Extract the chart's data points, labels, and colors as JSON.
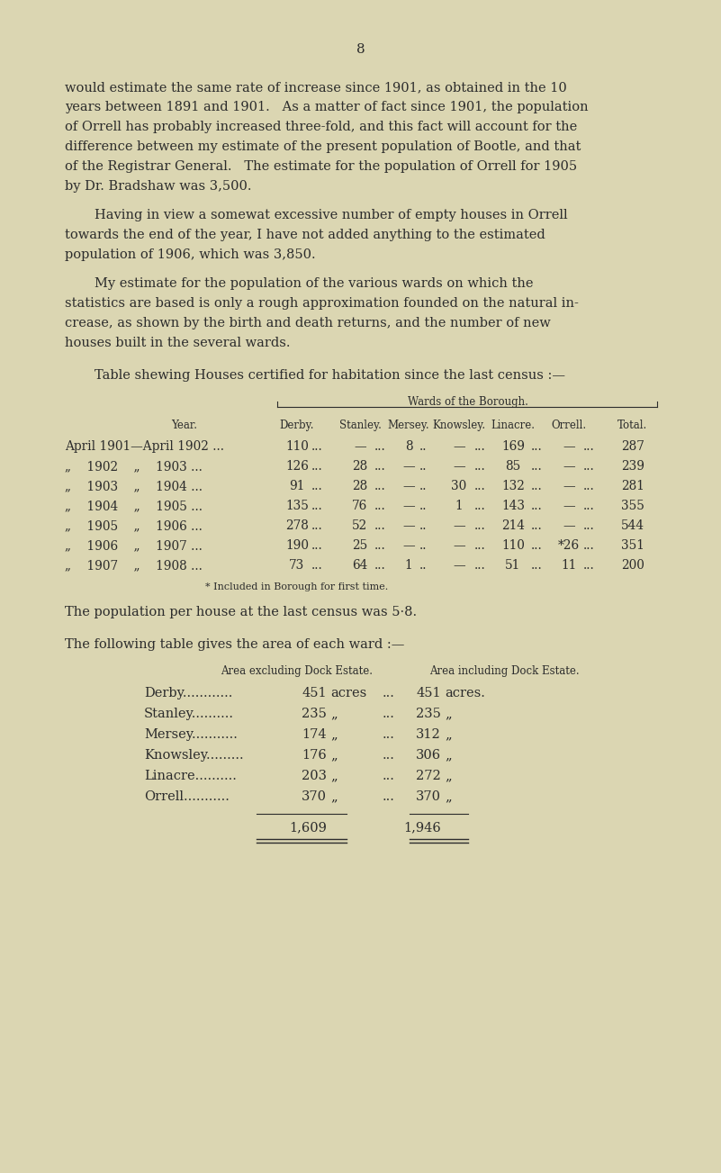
{
  "bg_color": "#dbd6b2",
  "text_color": "#2c2c2c",
  "page_number": "8",
  "para1_lines": [
    "would estimate the same rate of increase since 1901, as obtained in the 10",
    "years between 1891 and 1901.   As a matter of fact since 1901, the population",
    "of Orrell has probably increased three-fold, and this fact will account for the",
    "difference between my estimate of the present population of Bootle, and that",
    "of the Registrar General.   The estimate for the population of Orrell for 1905",
    "by Dr. Bradshaw was 3,500."
  ],
  "para2_lines": [
    "Having in view a somewat excessive number of empty houses in Orrell",
    "towards the end of the year, I have not added anything to the estimated",
    "population of 1906, which was 3,850."
  ],
  "para3_lines": [
    "My estimate for the population of the various wards on which the",
    "statistics are based is only a rough approximation founded on the natural in-",
    "crease, as shown by the birth and death returns, and the number of new",
    "houses built in the several wards."
  ],
  "table1_title": "Table shewing Houses certified for habitation since the last census :—",
  "table1_subtitle": "Wards of the Borough.",
  "table1_col_headers": [
    "Year.",
    "Derby.",
    "Stanley.",
    "Mersey.",
    "Knowsley.",
    "Linacre.",
    "Orrell.",
    "Total."
  ],
  "table1_data": [
    [
      "April 1901—April 1902 ...",
      "110",
      "—",
      "8",
      "—",
      "169",
      "—",
      "287"
    ],
    [
      "„    1902    „    1903 ...",
      "126",
      "28",
      "—",
      "—",
      "85",
      "—",
      "239"
    ],
    [
      "„    1903    „    1904 ...",
      "91",
      "28",
      "—",
      "30",
      "132",
      "—",
      "281"
    ],
    [
      "„    1904    „    1905 ...",
      "135",
      "76",
      "—",
      "1",
      "143",
      "—",
      "355"
    ],
    [
      "„    1905    „    1906 ...",
      "278",
      "52",
      "—",
      "—",
      "214",
      "—",
      "544"
    ],
    [
      "„    1906    „    1907 ...",
      "190",
      "25",
      "—",
      "—",
      "110",
      "*26",
      "351"
    ],
    [
      "„    1907    „    1908 ...",
      "73",
      "64",
      "1",
      "—",
      "51",
      "11",
      "200"
    ]
  ],
  "table1_footnote": "* Included in Borough for first time.",
  "pop_per_house": "The population per house at the last census was 5·8.",
  "table2_intro": "The following table gives the area of each ward :—",
  "table2_col1_header": "Area excluding Dock Estate.",
  "table2_col2_header": "Area including Dock Estate.",
  "table2_rows": [
    [
      "Derby",
      "451",
      "acres",
      "451",
      "acres."
    ],
    [
      "Stanley",
      "235",
      "„",
      "235",
      "„"
    ],
    [
      "Mersey",
      "174",
      "„",
      "312",
      "„"
    ],
    [
      "Knowsley",
      "176",
      "„",
      "306",
      "„"
    ],
    [
      "Linacre",
      "203",
      "„",
      "272",
      "„"
    ],
    [
      "Orrell",
      "370",
      "„",
      "370",
      "„"
    ]
  ],
  "table2_total1": "1,609",
  "table2_total2": "1,946"
}
